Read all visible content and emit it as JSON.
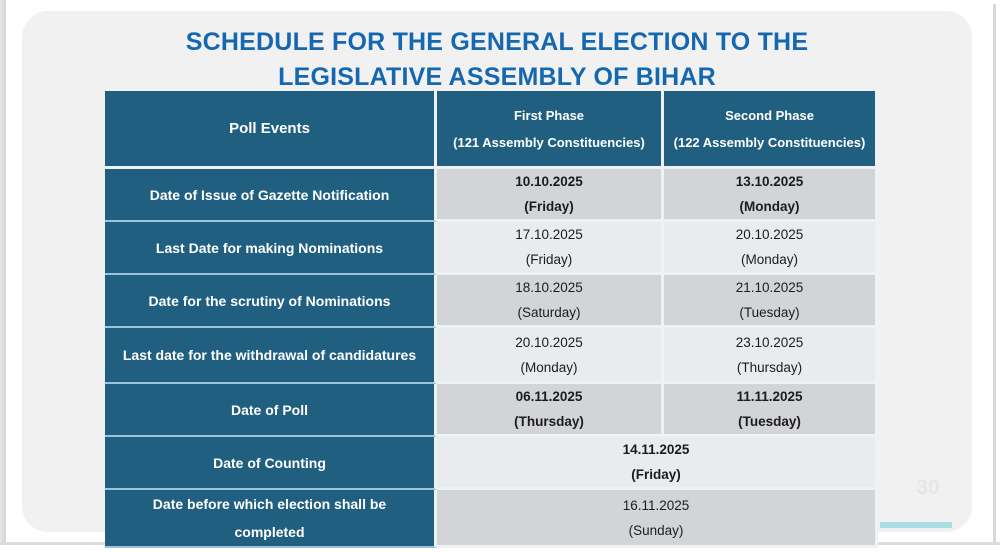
{
  "title": {
    "line1": "SCHEDULE FOR THE GENERAL ELECTION TO THE",
    "line2": "LEGISLATIVE ASSEMBLY OF BIHAR"
  },
  "page": {
    "page_number": "30"
  },
  "colors": {
    "teal_cell": "#215f80",
    "title_blue": "#1568b0",
    "dark_row": "#d2d4d8",
    "light_row": "#e9ebee",
    "accent_bar": "#a8dde2",
    "slide_background": "#f1f1f2"
  },
  "table": {
    "header": {
      "col1": "Poll Events",
      "col2_line1": "First Phase",
      "col2_line2": "(121 Assembly Constituencies)",
      "col3_line1": "Second Phase",
      "col3_line2": "(122 Assembly Constituencies)"
    },
    "rows": [
      {
        "event": "Date of Issue of Gazette Notification",
        "merged": false,
        "emphasis": true,
        "first": {
          "date": "10.10.2025",
          "day": "(Friday)"
        },
        "second": {
          "date": "13.10.2025",
          "day": "(Monday)"
        }
      },
      {
        "event": "Last Date for making Nominations",
        "merged": false,
        "emphasis": false,
        "first": {
          "date": "17.10.2025",
          "day": "(Friday)"
        },
        "second": {
          "date": "20.10.2025",
          "day": "(Monday)"
        }
      },
      {
        "event": "Date for the scrutiny of Nominations",
        "merged": false,
        "emphasis": false,
        "first": {
          "date": "18.10.2025",
          "day": "(Saturday)"
        },
        "second": {
          "date": "21.10.2025",
          "day": "(Tuesday)"
        }
      },
      {
        "event": "Last date for the withdrawal of candidatures",
        "merged": false,
        "emphasis": false,
        "first": {
          "date": "20.10.2025",
          "day": "(Monday)"
        },
        "second": {
          "date": "23.10.2025",
          "day": "(Thursday)"
        }
      },
      {
        "event": "Date of Poll",
        "merged": false,
        "emphasis": true,
        "first": {
          "date": "06.11.2025",
          "day": "(Thursday)"
        },
        "second": {
          "date": "11.11.2025",
          "day": "(Tuesday)"
        }
      },
      {
        "event": "Date of Counting",
        "merged": true,
        "emphasis": true,
        "merged_value": {
          "date": "14.11.2025",
          "day": "(Friday)"
        }
      },
      {
        "event": "Date before which election shall be completed",
        "merged": true,
        "emphasis": false,
        "merged_value": {
          "date": "16.11.2025",
          "day": "(Sunday)"
        }
      }
    ]
  }
}
